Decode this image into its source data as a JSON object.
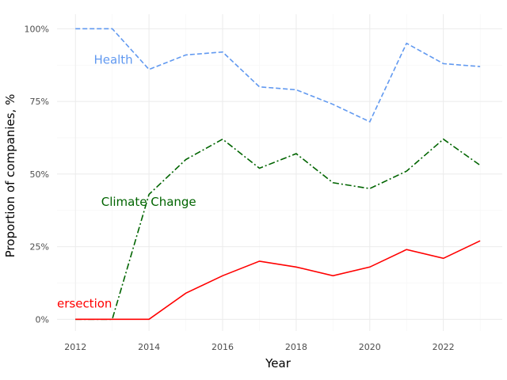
{
  "chart_data": {
    "type": "line",
    "title": "",
    "xlabel": "Year",
    "ylabel": "Proportion of companies, %",
    "x": [
      2012,
      2013,
      2014,
      2015,
      2016,
      2017,
      2018,
      2019,
      2020,
      2021,
      2022,
      2023
    ],
    "xlim": [
      2011.5,
      2023.6
    ],
    "ylim": [
      -0.04,
      1.05
    ],
    "x_ticks": [
      2012,
      2014,
      2016,
      2018,
      2020,
      2022
    ],
    "x_tick_labels": [
      "2012",
      "2014",
      "2016",
      "2018",
      "2020",
      "2022"
    ],
    "y_ticks": [
      0,
      0.25,
      0.5,
      0.75,
      1.0
    ],
    "y_tick_labels": [
      "0%",
      "25%",
      "50%",
      "75%",
      "100%"
    ],
    "grid": true,
    "legend": "none (direct labels)",
    "series": [
      {
        "name": "Health",
        "color": "#6199f0",
        "line_style": "dashed",
        "values": [
          1.0,
          1.0,
          0.86,
          0.91,
          0.92,
          0.8,
          0.79,
          0.74,
          0.68,
          0.95,
          0.88,
          0.87
        ],
        "label_at": [
          2012.5,
          0.88
        ]
      },
      {
        "name": "Climate Change",
        "color": "#006400",
        "line_style": "dashdot",
        "values": [
          0,
          0,
          0.43,
          0.55,
          0.62,
          0.52,
          0.57,
          0.47,
          0.45,
          0.51,
          0.62,
          0.53
        ],
        "label_at": [
          2012.7,
          0.39
        ]
      },
      {
        "name": "ersection",
        "color": "#ff0000",
        "line_style": "solid",
        "values": [
          0,
          0,
          0,
          0.09,
          0.15,
          0.2,
          0.18,
          0.15,
          0.18,
          0.24,
          0.21,
          0.27
        ],
        "label_at": [
          2011.5,
          0.04
        ]
      }
    ]
  }
}
